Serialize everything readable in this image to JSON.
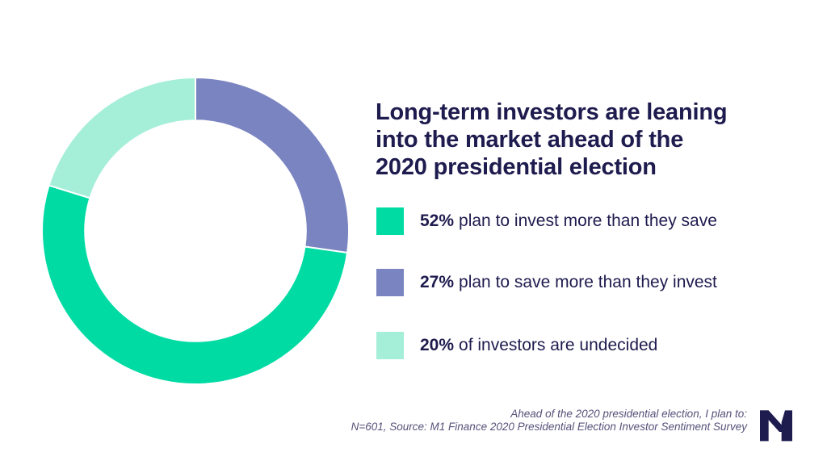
{
  "header": {
    "title": "Long-term investors are leaning into the market ahead of the 2020 presidential election",
    "title_lines": [
      "Long-term investors are leaning",
      "into the market ahead of the",
      "2020 presidential election"
    ],
    "title_color": "#1E1B4E"
  },
  "chart_data": {
    "type": "pie",
    "subtype": "donut",
    "title": "Long-term investors are leaning into the market ahead of the 2020 presidential election",
    "slices": [
      {
        "percent_label": "52%",
        "label": "plan to invest more than they save",
        "value": 52,
        "color": "#00DBA4"
      },
      {
        "percent_label": "27%",
        "label": "plan to save more than they invest",
        "value": 27,
        "color": "#7A84C1"
      },
      {
        "percent_label": "20%",
        "label": "of investors are undecided",
        "value": 20,
        "color": "#A5EFD9"
      }
    ],
    "start_angle_deg": 0,
    "direction": "clockwise",
    "draw_order": [
      1,
      0,
      2
    ],
    "inner_radius_ratio": 0.72,
    "separator_color": "#ffffff",
    "legend_position": "right"
  },
  "footer": {
    "lines": [
      "Ahead of the 2020 presidential election, I plan to:",
      "N=601, Source: M1 Finance 2020 Presidential Election Investor Sentiment Survey"
    ],
    "color": "#56527A"
  },
  "logo": {
    "label": "M1",
    "color": "#1E1B4E"
  }
}
